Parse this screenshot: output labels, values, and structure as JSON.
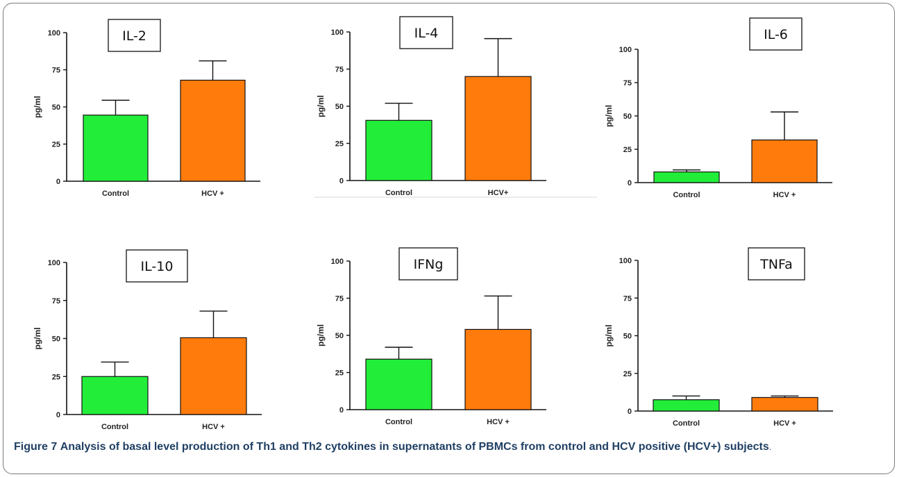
{
  "caption": {
    "label": "Figure 7",
    "text": "Analysis of basal level production of Th1 and Th2 cytokines in supernatants of PBMCs from control and HCV positive (HCV+) subjects",
    "end": "."
  },
  "colors": {
    "control": "#22ee3a",
    "hcv": "#ff7b0c"
  },
  "chart_data": [
    {
      "type": "bar",
      "title": "IL-2",
      "ylabel": "pg/ml",
      "categories": [
        "Control",
        "HCV +"
      ],
      "values": [
        44.5,
        68
      ],
      "error": [
        10,
        13
      ],
      "ylim": [
        0,
        100
      ],
      "yticks": [
        0,
        25,
        50,
        75,
        100
      ]
    },
    {
      "type": "bar",
      "title": "IL-4",
      "ylabel": "pg/ml",
      "categories": [
        "Control",
        "HCV+"
      ],
      "values": [
        40.5,
        70
      ],
      "error": [
        11.5,
        25.5
      ],
      "ylim": [
        0,
        100
      ],
      "yticks": [
        0,
        25,
        50,
        75,
        100
      ]
    },
    {
      "type": "bar",
      "title": "IL-6",
      "ylabel": "pg/ml",
      "categories": [
        "Control",
        "HCV +"
      ],
      "values": [
        8,
        32
      ],
      "error": [
        1.5,
        21
      ],
      "ylim": [
        0,
        100
      ],
      "yticks": [
        0,
        25,
        50,
        75,
        100
      ]
    },
    {
      "type": "bar",
      "title": "IL-10",
      "ylabel": "pg/ml",
      "categories": [
        "Control",
        "HCV +"
      ],
      "values": [
        25,
        50.5
      ],
      "error": [
        9.5,
        17.5
      ],
      "ylim": [
        0,
        100
      ],
      "yticks": [
        0,
        25,
        50,
        75,
        100
      ]
    },
    {
      "type": "bar",
      "title": "IFNg",
      "ylabel": "pg/ml",
      "categories": [
        "Control",
        "HCV +"
      ],
      "values": [
        34,
        54
      ],
      "error": [
        8,
        22.5
      ],
      "ylim": [
        0,
        100
      ],
      "yticks": [
        0,
        25,
        50,
        75,
        100
      ]
    },
    {
      "type": "bar",
      "title": "TNFa",
      "ylabel": "pg/ml",
      "categories": [
        "Control",
        "HCV +"
      ],
      "values": [
        7.5,
        9
      ],
      "error": [
        2.5,
        1
      ],
      "ylim": [
        0,
        100
      ],
      "yticks": [
        0,
        25,
        50,
        75,
        100
      ]
    }
  ]
}
